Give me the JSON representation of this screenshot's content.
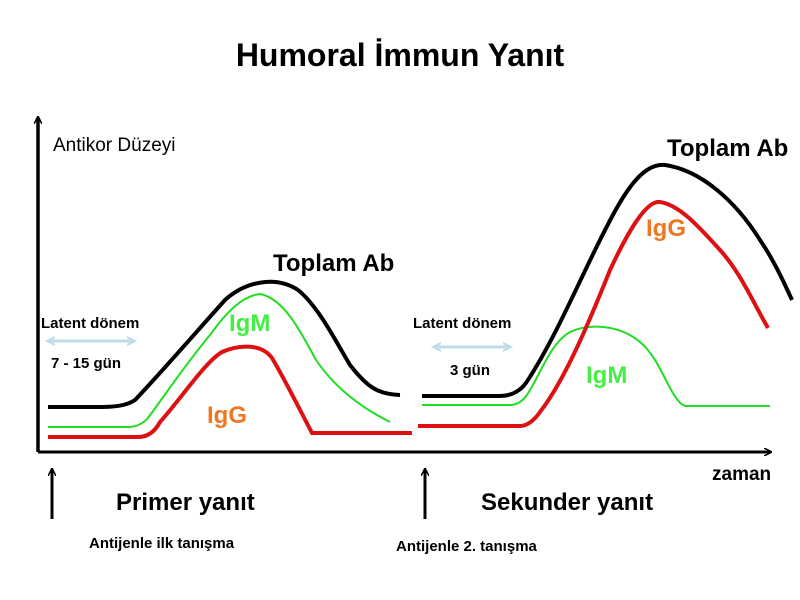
{
  "title": "Humoral İmmun Yanıt",
  "y_axis_label": "Antikor Düzeyi",
  "x_axis_label": "zaman",
  "primary": {
    "total_label": "Toplam Ab",
    "igm_label": "IgM",
    "igg_label": "IgG",
    "latent_label": "Latent dönem",
    "latent_duration": "7 - 15 gün",
    "response_label": "Primer yanıt",
    "antigen_label": "Antijenle ilk tanışma"
  },
  "secondary": {
    "total_label": "Toplam Ab",
    "igm_label": "IgM",
    "igg_label": "IgG",
    "latent_label": "Latent dönem",
    "latent_duration": "3 gün",
    "response_label": "Sekunder yanıt",
    "antigen_label": "Antijenle 2. tanışma"
  },
  "colors": {
    "total": "#000000",
    "igm_curve": "#22dd22",
    "igm_text": "#44ee44",
    "igg_curve": "#dd1111",
    "igg_text": "#ee7722",
    "latent_arrow": "#bcdde8",
    "axis": "#000000"
  }
}
